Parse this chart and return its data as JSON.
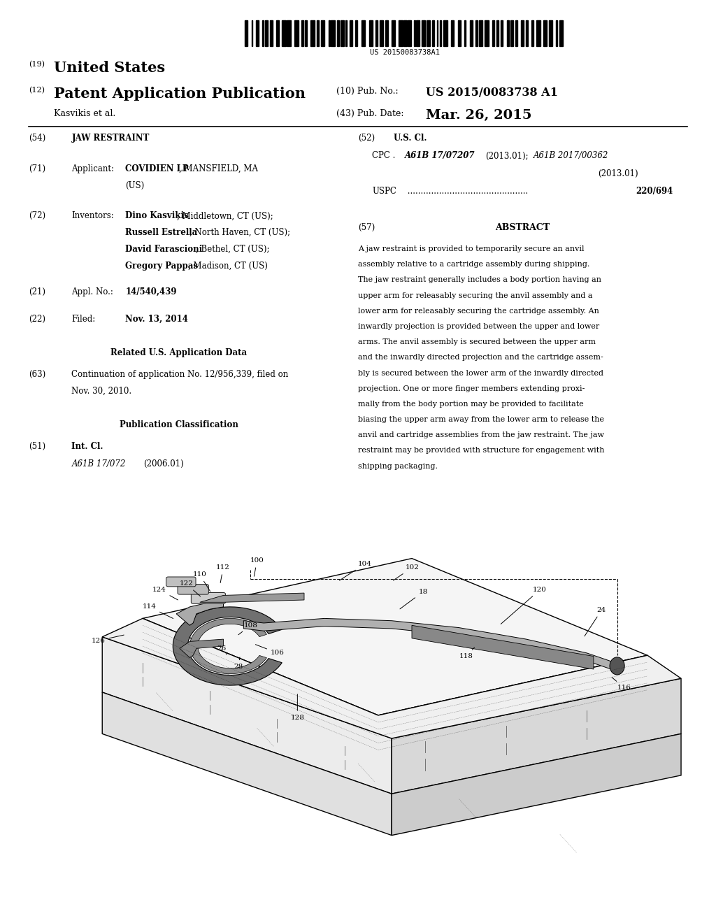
{
  "background_color": "#ffffff",
  "barcode_text": "US 20150083738A1",
  "country": "United States",
  "pub_type": "Patent Application Publication",
  "pub_no": "US 2015/0083738 A1",
  "pub_date": "Mar. 26, 2015",
  "author": "Kasvikis et al.",
  "abstract_text": "A jaw restraint is provided to temporarily secure an anvil\nassembly relative to a cartridge assembly during shipping.\nThe jaw restraint generally includes a body portion having an\nupper arm for releasably securing the anvil assembly and a\nlower arm for releasably securing the cartridge assembly. An\ninwardly projection is provided between the upper and lower\narms. The anvil assembly is secured between the upper arm\nand the inwardly directed projection and the cartridge assem-\nbly is secured between the lower arm of the inwardly directed\nprojection. One or more finger members extending proxi-\nmally from the body portion may be provided to facilitate\nbiasing the upper arm away from the lower arm to release the\nanvil and cartridge assemblies from the jaw restraint. The jaw\nrestraint may be provided with structure for engagement with\nshipping packaging."
}
